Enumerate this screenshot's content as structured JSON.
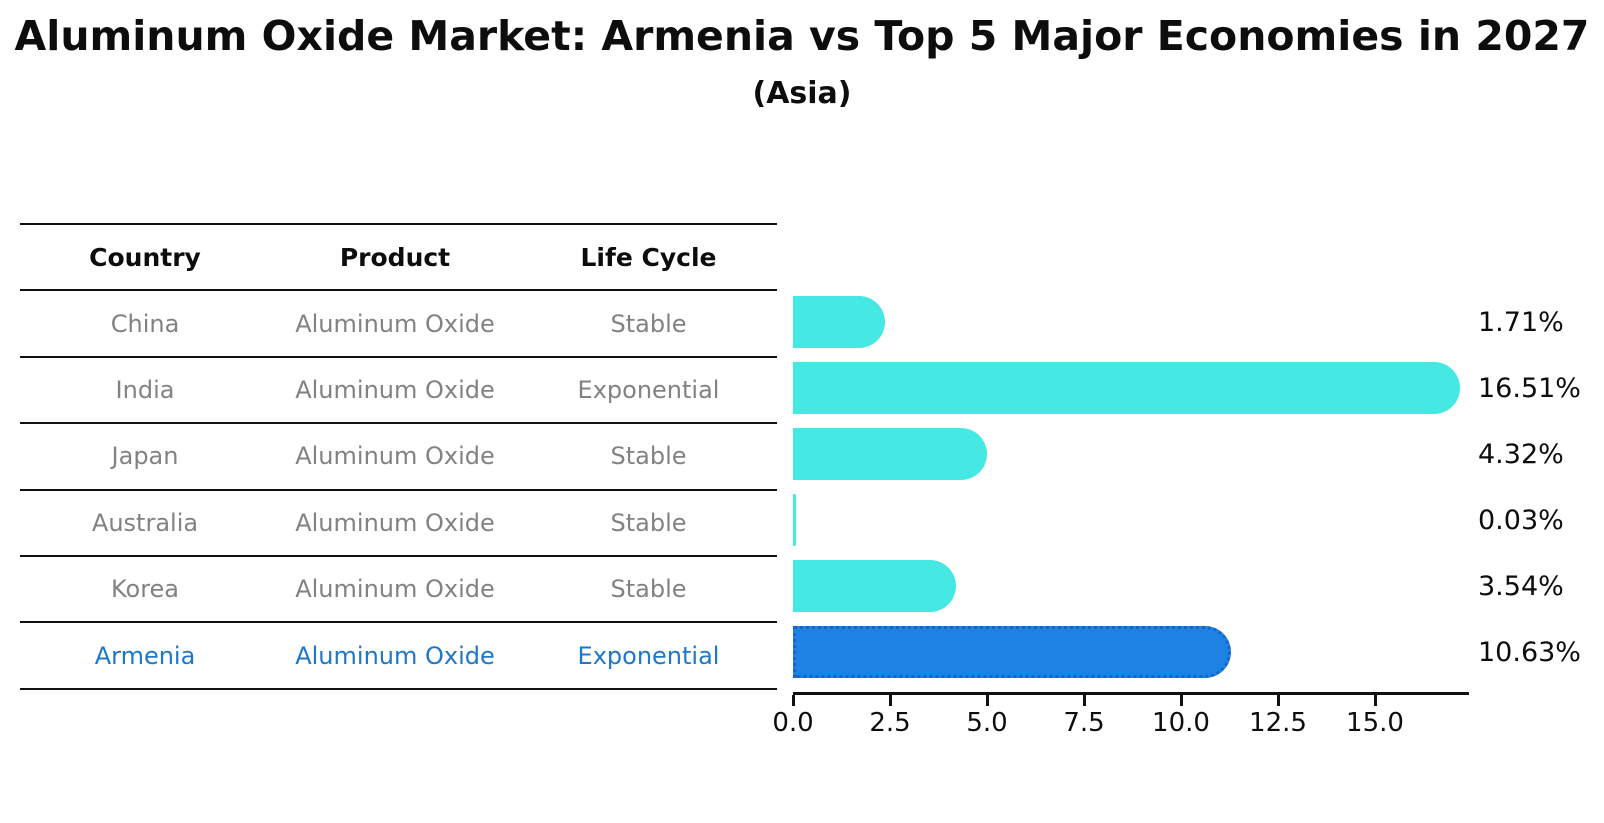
{
  "title": "Aluminum Oxide Market: Armenia vs Top 5 Major Economies in 2027",
  "subtitle": "(Asia)",
  "table": {
    "headers": [
      "Country",
      "Product",
      "Life Cycle"
    ],
    "rows": [
      {
        "country": "China",
        "product": "Aluminum Oxide",
        "life_cycle": "Stable",
        "highlight": false
      },
      {
        "country": "India",
        "product": "Aluminum Oxide",
        "life_cycle": "Exponential",
        "highlight": false
      },
      {
        "country": "Japan",
        "product": "Aluminum Oxide",
        "life_cycle": "Stable",
        "highlight": false
      },
      {
        "country": "Australia",
        "product": "Aluminum Oxide",
        "life_cycle": "Stable",
        "highlight": false
      },
      {
        "country": "Korea",
        "product": "Aluminum Oxide",
        "life_cycle": "Stable",
        "highlight": false
      },
      {
        "country": "Armenia",
        "product": "Aluminum Oxide",
        "life_cycle": "Exponential",
        "highlight": true
      }
    ]
  },
  "chart_data": {
    "type": "bar",
    "orientation": "horizontal",
    "title": "Aluminum Oxide Market: Armenia vs Top 5 Major Economies in 2027",
    "subtitle": "(Asia)",
    "categories": [
      "China",
      "India",
      "Japan",
      "Australia",
      "Korea",
      "Armenia"
    ],
    "values": [
      1.71,
      16.51,
      4.32,
      0.03,
      3.54,
      10.63
    ],
    "value_labels": [
      "1.71%",
      "16.51%",
      "4.32%",
      "0.03%",
      "3.54%",
      "10.63%"
    ],
    "x_tick_labels": [
      "0.0",
      "2.5",
      "5.0",
      "7.5",
      "10.0",
      "12.5",
      "15.0"
    ],
    "x_tick_values": [
      0.0,
      2.5,
      5.0,
      7.5,
      10.0,
      12.5,
      15.0
    ],
    "xlim": [
      0,
      17.4
    ],
    "xlabel": "",
    "ylabel": "",
    "grid": false,
    "legend": false,
    "highlight_category": "Armenia",
    "colors": {
      "default_bar": "#45E8E3",
      "highlight_bar": "#1E82E4",
      "highlight_bar_border": "#1565C8",
      "highlight_text": "#1F77C8",
      "row_text": "#828282",
      "axis": "#111111"
    }
  }
}
